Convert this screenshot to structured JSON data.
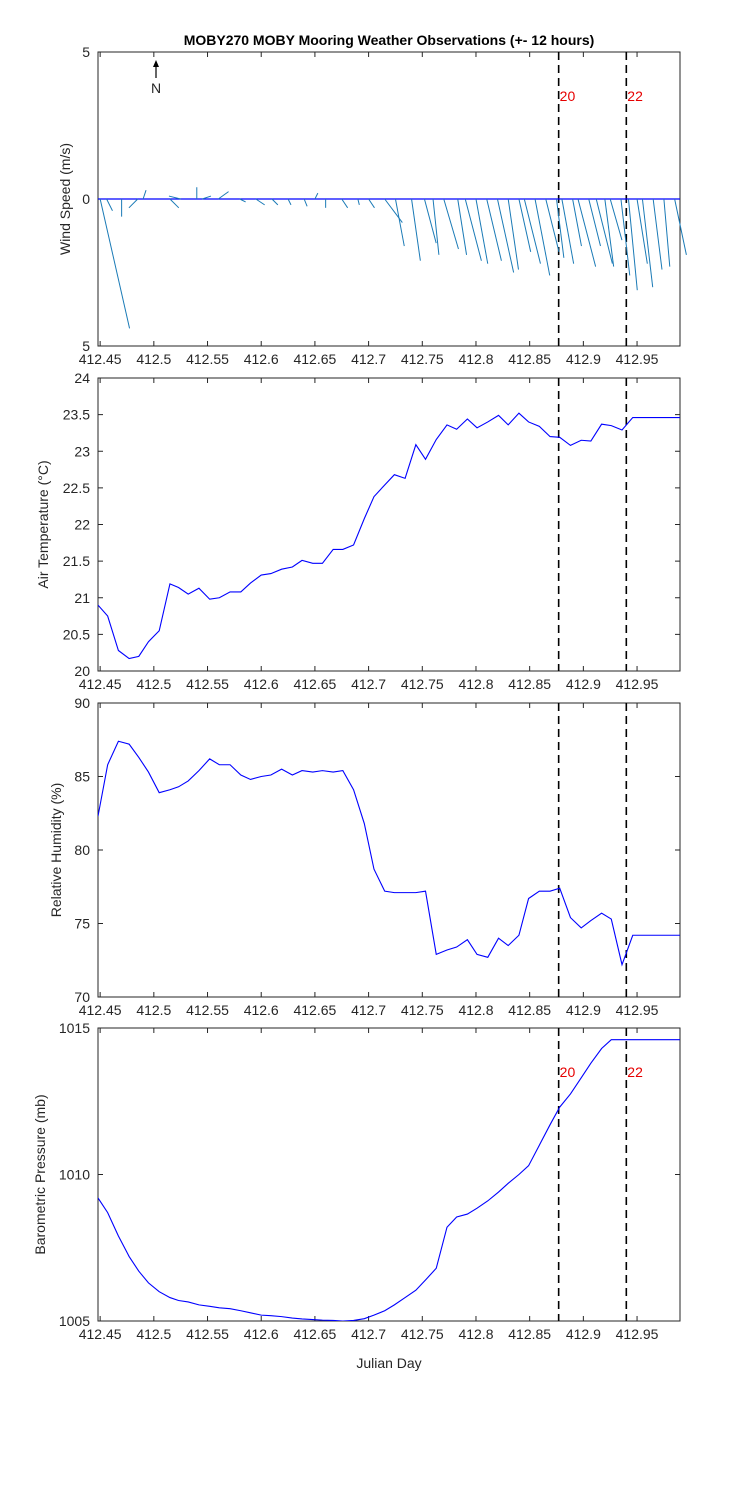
{
  "figure": {
    "title": "MOBY270 MOBY Mooring Weather Observations (+- 12 hours)",
    "xlabel": "Julian Day",
    "north_label": "N"
  },
  "colors": {
    "line": "#0000ff",
    "wind": "#1a7ab6",
    "marker_text": "#e60000",
    "axes": "#262626",
    "vline": "#000000"
  },
  "chart_data": [
    {
      "type": "line",
      "subtype": "wind-vector-stick",
      "ylabel": "Wind Speed (m/s)",
      "xlim": [
        412.448,
        412.99
      ],
      "ylim": [
        -5,
        5
      ],
      "yticks": [
        5,
        0,
        5
      ],
      "xticks": [
        412.45,
        412.5,
        412.55,
        412.6,
        412.65,
        412.7,
        412.75,
        412.8,
        412.85,
        412.9,
        412.95
      ],
      "vlines": [
        {
          "x": 412.877,
          "label": "20"
        },
        {
          "x": 412.94,
          "label": "22"
        }
      ],
      "sticks": [
        {
          "x": 412.45,
          "u": 1.0,
          "v": -4.4
        },
        {
          "x": 412.456,
          "u": 0.2,
          "v": -0.4
        },
        {
          "x": 412.47,
          "u": 0.0,
          "v": -0.6
        },
        {
          "x": 412.485,
          "u": -0.3,
          "v": -0.3
        },
        {
          "x": 412.49,
          "u": 0.1,
          "v": 0.3
        },
        {
          "x": 412.515,
          "u": 0.3,
          "v": -0.3
        },
        {
          "x": 412.525,
          "u": -0.4,
          "v": 0.1
        },
        {
          "x": 412.54,
          "u": 0.0,
          "v": 0.4
        },
        {
          "x": 412.545,
          "u": 0.3,
          "v": 0.1
        },
        {
          "x": 412.56,
          "u": 0.35,
          "v": 0.25
        },
        {
          "x": 412.58,
          "u": 0.2,
          "v": -0.1
        },
        {
          "x": 412.595,
          "u": 0.3,
          "v": -0.2
        },
        {
          "x": 412.61,
          "u": 0.2,
          "v": -0.2
        },
        {
          "x": 412.625,
          "u": 0.1,
          "v": -0.2
        },
        {
          "x": 412.64,
          "u": 0.1,
          "v": -0.25
        },
        {
          "x": 412.65,
          "u": 0.1,
          "v": 0.2
        },
        {
          "x": 412.66,
          "u": 0.0,
          "v": -0.3
        },
        {
          "x": 412.675,
          "u": 0.2,
          "v": -0.3
        },
        {
          "x": 412.69,
          "u": 0.05,
          "v": -0.2
        },
        {
          "x": 412.7,
          "u": 0.2,
          "v": -0.3
        },
        {
          "x": 412.715,
          "u": 0.6,
          "v": -0.8
        },
        {
          "x": 412.725,
          "u": 0.3,
          "v": -1.6
        },
        {
          "x": 412.74,
          "u": 0.3,
          "v": -2.1
        },
        {
          "x": 412.752,
          "u": 0.4,
          "v": -1.5
        },
        {
          "x": 412.76,
          "u": 0.2,
          "v": -1.9
        },
        {
          "x": 412.77,
          "u": 0.5,
          "v": -1.7
        },
        {
          "x": 412.783,
          "u": 0.3,
          "v": -1.9
        },
        {
          "x": 412.79,
          "u": 0.55,
          "v": -2.1
        },
        {
          "x": 412.8,
          "u": 0.4,
          "v": -2.2
        },
        {
          "x": 412.81,
          "u": 0.5,
          "v": -2.1
        },
        {
          "x": 412.82,
          "u": 0.55,
          "v": -2.5
        },
        {
          "x": 412.83,
          "u": 0.35,
          "v": -2.4
        },
        {
          "x": 412.84,
          "u": 0.4,
          "v": -1.8
        },
        {
          "x": 412.845,
          "u": 0.55,
          "v": -2.2
        },
        {
          "x": 412.855,
          "u": 0.5,
          "v": -2.6
        },
        {
          "x": 412.865,
          "u": 0.45,
          "v": -1.8
        },
        {
          "x": 412.875,
          "u": 0.25,
          "v": -2.0
        },
        {
          "x": 412.88,
          "u": 0.4,
          "v": -2.2
        },
        {
          "x": 412.89,
          "u": 0.3,
          "v": -1.6
        },
        {
          "x": 412.895,
          "u": 0.6,
          "v": -2.3
        },
        {
          "x": 412.905,
          "u": 0.4,
          "v": -1.6
        },
        {
          "x": 412.912,
          "u": 0.55,
          "v": -2.2
        },
        {
          "x": 412.92,
          "u": 0.3,
          "v": -2.3
        },
        {
          "x": 412.925,
          "u": 0.4,
          "v": -1.4
        },
        {
          "x": 412.935,
          "u": 0.3,
          "v": -2.6
        },
        {
          "x": 412.942,
          "u": 0.3,
          "v": -3.1
        },
        {
          "x": 412.95,
          "u": 0.35,
          "v": -2.2
        },
        {
          "x": 412.955,
          "u": 0.35,
          "v": -3.0
        },
        {
          "x": 412.965,
          "u": 0.3,
          "v": -2.4
        },
        {
          "x": 412.975,
          "u": 0.2,
          "v": -2.3
        },
        {
          "x": 412.985,
          "u": 0.4,
          "v": -1.9
        }
      ]
    },
    {
      "type": "line",
      "ylabel": "Air Temperature (°C)",
      "xlim": [
        412.448,
        412.99
      ],
      "ylim": [
        20,
        24
      ],
      "yticks": [
        20,
        20.5,
        21,
        21.5,
        22,
        22.5,
        23,
        23.5,
        24
      ],
      "xticks": [
        412.45,
        412.5,
        412.55,
        412.6,
        412.65,
        412.7,
        412.75,
        412.8,
        412.85,
        412.9,
        412.95
      ],
      "vlines": [
        {
          "x": 412.877,
          "label": ""
        },
        {
          "x": 412.94,
          "label": ""
        }
      ],
      "x": [
        412.448,
        412.457,
        412.467,
        412.477,
        412.486,
        412.495,
        412.505,
        412.515,
        412.523,
        412.532,
        412.542,
        412.552,
        412.561,
        412.571,
        412.581,
        412.59,
        412.6,
        412.609,
        412.619,
        412.629,
        412.638,
        412.648,
        412.657,
        412.667,
        412.676,
        412.686,
        412.696,
        412.705,
        412.715,
        412.724,
        412.734,
        412.744,
        412.753,
        412.763,
        412.773,
        412.782,
        412.792,
        412.801,
        412.811,
        412.821,
        412.83,
        412.84,
        412.849,
        412.859,
        412.869,
        412.878,
        412.888,
        412.898,
        412.907,
        412.917,
        412.926,
        412.936,
        412.946,
        412.955,
        412.965,
        412.975,
        412.984,
        412.99
      ],
      "y": [
        20.9,
        20.75,
        20.28,
        20.17,
        20.2,
        20.4,
        20.55,
        21.19,
        21.14,
        21.05,
        21.13,
        20.98,
        21.0,
        21.08,
        21.08,
        21.2,
        21.31,
        21.33,
        21.39,
        21.42,
        21.51,
        21.47,
        21.47,
        21.66,
        21.66,
        21.72,
        22.08,
        22.38,
        22.54,
        22.68,
        22.63,
        23.09,
        22.89,
        23.16,
        23.36,
        23.3,
        23.44,
        23.32,
        23.4,
        23.49,
        23.36,
        23.52,
        23.4,
        23.34,
        23.2,
        23.19,
        23.08,
        23.15,
        23.14,
        23.37,
        23.35,
        23.29,
        23.46,
        23.46,
        23.46,
        23.46,
        23.46,
        23.46
      ]
    },
    {
      "type": "line",
      "ylabel": "Relative Humidity (%)",
      "xlim": [
        412.448,
        412.99
      ],
      "ylim": [
        70,
        90
      ],
      "yticks": [
        70,
        75,
        80,
        85,
        90
      ],
      "xticks": [
        412.45,
        412.5,
        412.55,
        412.6,
        412.65,
        412.7,
        412.75,
        412.8,
        412.85,
        412.9,
        412.95
      ],
      "vlines": [
        {
          "x": 412.877,
          "label": ""
        },
        {
          "x": 412.94,
          "label": ""
        }
      ],
      "x": [
        412.448,
        412.457,
        412.467,
        412.477,
        412.486,
        412.495,
        412.505,
        412.515,
        412.523,
        412.532,
        412.542,
        412.552,
        412.561,
        412.571,
        412.581,
        412.59,
        412.6,
        412.609,
        412.619,
        412.629,
        412.638,
        412.648,
        412.657,
        412.667,
        412.676,
        412.686,
        412.696,
        412.705,
        412.715,
        412.724,
        412.734,
        412.744,
        412.753,
        412.763,
        412.773,
        412.782,
        412.792,
        412.801,
        412.811,
        412.821,
        412.83,
        412.84,
        412.849,
        412.859,
        412.869,
        412.878,
        412.888,
        412.898,
        412.907,
        412.917,
        412.926,
        412.936,
        412.946,
        412.955,
        412.965,
        412.975,
        412.984,
        412.99
      ],
      "y": [
        82.3,
        85.8,
        87.4,
        87.2,
        86.3,
        85.3,
        83.9,
        84.1,
        84.3,
        84.7,
        85.4,
        86.2,
        85.8,
        85.8,
        85.1,
        84.8,
        85.0,
        85.1,
        85.5,
        85.1,
        85.4,
        85.3,
        85.4,
        85.3,
        85.4,
        84.1,
        81.8,
        78.7,
        77.2,
        77.1,
        77.1,
        77.1,
        77.2,
        72.9,
        73.2,
        73.4,
        73.9,
        72.9,
        72.7,
        74.0,
        73.5,
        74.2,
        76.7,
        77.2,
        77.2,
        77.4,
        75.4,
        74.7,
        75.2,
        75.7,
        75.3,
        72.2,
        74.2,
        74.2,
        74.2,
        74.2,
        74.2,
        74.2
      ]
    },
    {
      "type": "line",
      "ylabel": "Barometric Pressure (mb)",
      "xlim": [
        412.448,
        412.99
      ],
      "ylim": [
        1005,
        1015
      ],
      "yticks": [
        1005,
        1010,
        1015
      ],
      "xticks": [
        412.45,
        412.5,
        412.55,
        412.6,
        412.65,
        412.7,
        412.75,
        412.8,
        412.85,
        412.9,
        412.95
      ],
      "vlines": [
        {
          "x": 412.877,
          "label": "20"
        },
        {
          "x": 412.94,
          "label": "22"
        }
      ],
      "x": [
        412.448,
        412.457,
        412.467,
        412.477,
        412.486,
        412.495,
        412.505,
        412.515,
        412.523,
        412.532,
        412.542,
        412.552,
        412.561,
        412.571,
        412.581,
        412.59,
        412.6,
        412.609,
        412.619,
        412.629,
        412.638,
        412.648,
        412.657,
        412.667,
        412.676,
        412.686,
        412.696,
        412.705,
        412.715,
        412.724,
        412.734,
        412.744,
        412.753,
        412.763,
        412.773,
        412.782,
        412.792,
        412.801,
        412.811,
        412.821,
        412.83,
        412.84,
        412.849,
        412.859,
        412.869,
        412.878,
        412.888,
        412.898,
        412.907,
        412.917,
        412.926,
        412.936,
        412.946,
        412.955,
        412.965,
        412.975,
        412.984,
        412.99
      ],
      "y": [
        1009.2,
        1008.7,
        1007.9,
        1007.2,
        1006.7,
        1006.3,
        1006.0,
        1005.8,
        1005.7,
        1005.65,
        1005.55,
        1005.5,
        1005.45,
        1005.42,
        1005.35,
        1005.28,
        1005.2,
        1005.18,
        1005.15,
        1005.1,
        1005.07,
        1005.05,
        1005.03,
        1005.02,
        1005.0,
        1005.02,
        1005.08,
        1005.2,
        1005.35,
        1005.55,
        1005.8,
        1006.05,
        1006.4,
        1006.8,
        1008.2,
        1008.55,
        1008.65,
        1008.85,
        1009.1,
        1009.4,
        1009.7,
        1010.0,
        1010.3,
        1011.0,
        1011.7,
        1012.3,
        1012.75,
        1013.3,
        1013.8,
        1014.3,
        1014.6,
        1014.6,
        1014.6,
        1014.6,
        1014.6,
        1014.6,
        1014.6,
        1014.6
      ]
    }
  ]
}
